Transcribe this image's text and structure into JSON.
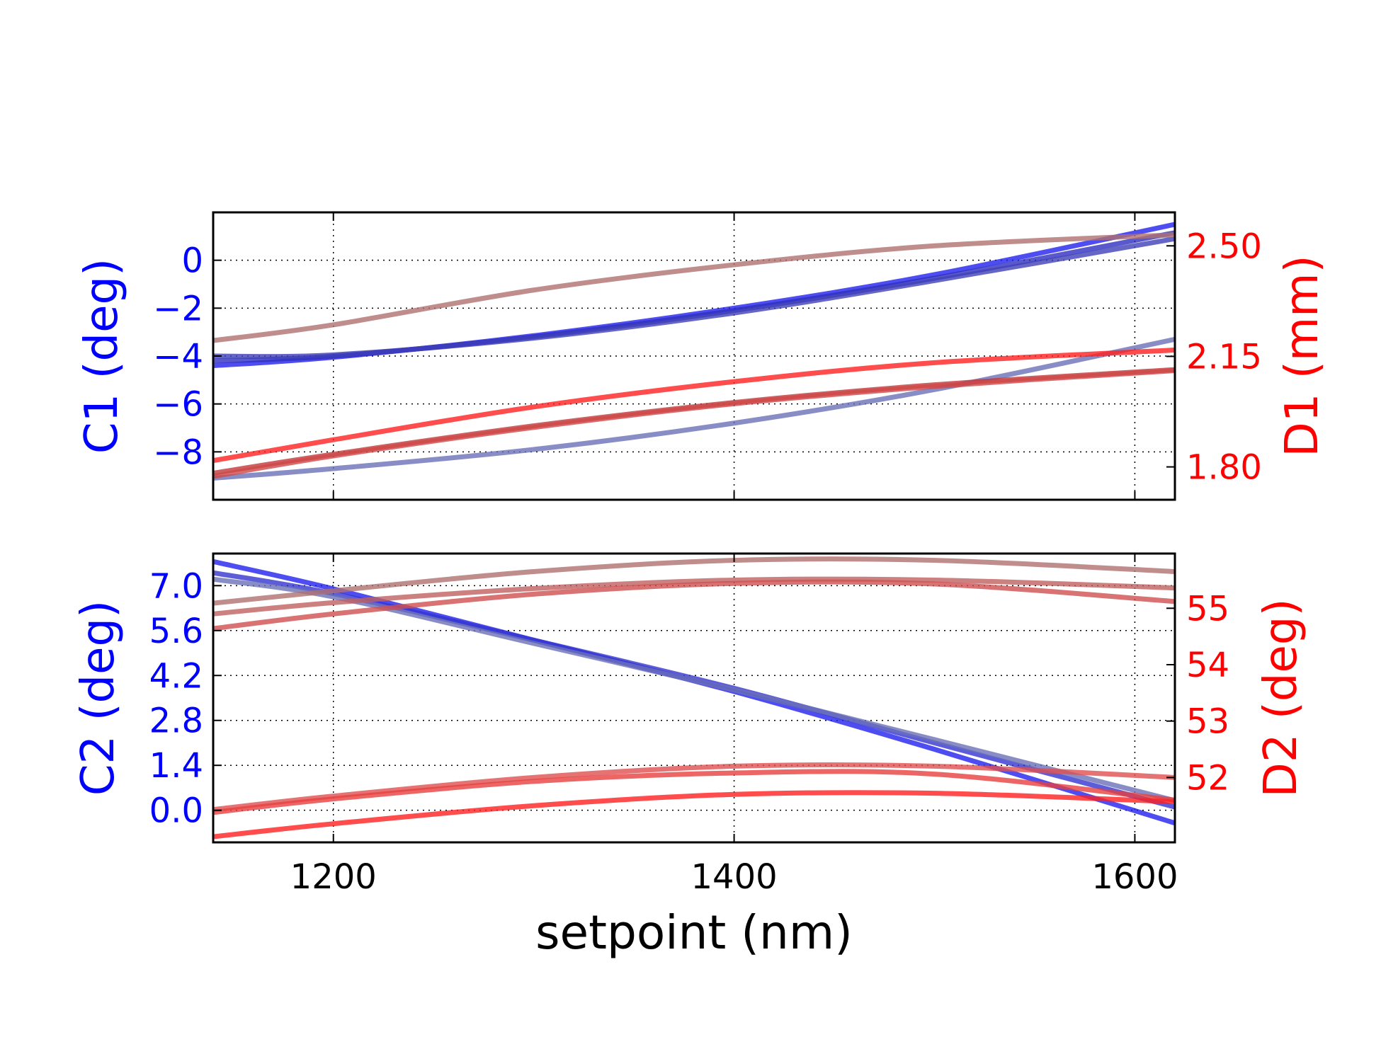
{
  "chart_data": [
    {
      "type": "line",
      "xlabel": "",
      "xlim": [
        1140,
        1620
      ],
      "xticks": [
        "1200",
        "1400",
        "1600"
      ],
      "grid": true,
      "left_axis": {
        "label": "C1 (deg)",
        "color": "#0000ff",
        "ylim": [
          -10,
          2
        ],
        "ticks": [
          0,
          -2,
          -4,
          -6,
          -8
        ],
        "tick_labels": [
          "0",
          "−2",
          "−4",
          "−6",
          "−8"
        ]
      },
      "right_axis": {
        "label": "D1 (mm)",
        "color": "#ff0000",
        "ylim": [
          1.696,
          2.606
        ],
        "ticks": [
          2.5,
          2.15,
          1.8
        ],
        "tick_labels": [
          "2.50",
          "2.15",
          "1.80"
        ]
      },
      "x": [
        1140,
        1200,
        1300,
        1400,
        1500,
        1620
      ],
      "series": [
        {
          "axis": "left",
          "color": "#2020ee",
          "values": [
            -4.4,
            -4.05,
            -3.15,
            -2.0,
            -0.6,
            1.5
          ]
        },
        {
          "axis": "left",
          "color": "#3030c0",
          "values": [
            -4.2,
            -4.0,
            -3.2,
            -2.1,
            -0.75,
            1.15
          ]
        },
        {
          "axis": "left",
          "color": "#4040b8",
          "values": [
            -4.0,
            -3.95,
            -3.25,
            -2.2,
            -0.85,
            0.9
          ]
        },
        {
          "axis": "left",
          "color": "#6b70b8",
          "values": [
            -9.1,
            -8.7,
            -7.9,
            -6.8,
            -5.4,
            -3.3
          ]
        },
        {
          "axis": "right",
          "color": "#b07070",
          "values": [
            2.2,
            2.25,
            2.36,
            2.44,
            2.5,
            2.535
          ]
        },
        {
          "axis": "right",
          "color": "#ff2020",
          "values": [
            1.82,
            1.886,
            1.99,
            2.07,
            2.13,
            2.17
          ]
        },
        {
          "axis": "right",
          "color": "#c03838",
          "values": [
            1.78,
            1.84,
            1.93,
            2.004,
            2.06,
            2.108
          ]
        },
        {
          "axis": "right",
          "color": "#d04848",
          "values": [
            1.77,
            1.835,
            1.925,
            2.0,
            2.055,
            2.105
          ]
        }
      ]
    },
    {
      "type": "line",
      "xlabel": "setpoint (nm)",
      "xlim": [
        1140,
        1620
      ],
      "xticks": [
        "1200",
        "1400",
        "1600"
      ],
      "grid": true,
      "left_axis": {
        "label": "C2 (deg)",
        "color": "#0000ff",
        "ylim": [
          -1.0,
          8.0
        ],
        "ticks": [
          7.0,
          5.6,
          4.2,
          2.8,
          1.4,
          0.0
        ],
        "tick_labels": [
          "7.0",
          "5.6",
          "4.2",
          "2.8",
          "1.4",
          "0.0"
        ]
      },
      "right_axis": {
        "label": "D2 (deg)",
        "color": "#ff0000",
        "ylim": [
          50.85,
          55.97
        ],
        "ticks": [
          55,
          54,
          53,
          52
        ],
        "tick_labels": [
          "55",
          "54",
          "53",
          "52"
        ]
      },
      "x": [
        1140,
        1200,
        1300,
        1400,
        1500,
        1620
      ],
      "series": [
        {
          "axis": "left",
          "color": "#2020ee",
          "values": [
            7.75,
            6.9,
            5.3,
            3.7,
            1.9,
            -0.4
          ]
        },
        {
          "axis": "left",
          "color": "#3535d0",
          "values": [
            7.4,
            6.75,
            5.3,
            3.8,
            2.1,
            0.1
          ]
        },
        {
          "axis": "left",
          "color": "#6b70b8",
          "values": [
            7.2,
            6.65,
            5.2,
            3.75,
            2.2,
            0.3
          ]
        },
        {
          "axis": "right",
          "color": "#b07070",
          "values": [
            55.09,
            55.31,
            55.65,
            55.85,
            55.85,
            55.65
          ]
        },
        {
          "axis": "right",
          "color": "#c06060",
          "values": [
            54.9,
            55.1,
            55.35,
            55.5,
            55.5,
            55.36
          ]
        },
        {
          "axis": "right",
          "color": "#d05050",
          "values": [
            54.64,
            54.9,
            55.25,
            55.44,
            55.43,
            55.12
          ]
        },
        {
          "axis": "right",
          "color": "#e05050",
          "values": [
            51.43,
            51.67,
            52.0,
            52.2,
            52.2,
            52.0
          ]
        },
        {
          "axis": "right",
          "color": "#e84040",
          "values": [
            51.38,
            51.62,
            51.93,
            52.08,
            52.06,
            51.6
          ]
        },
        {
          "axis": "right",
          "color": "#ff2020",
          "values": [
            50.95,
            51.18,
            51.5,
            51.7,
            51.72,
            51.57
          ]
        }
      ]
    }
  ]
}
